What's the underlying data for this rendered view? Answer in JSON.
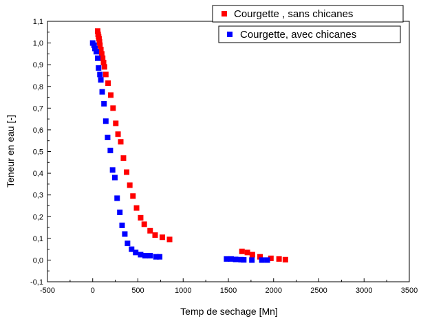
{
  "chart_data": {
    "type": "scatter",
    "xlabel": "Temp de sechage [Mn]",
    "ylabel": "Teneur en eau [-]",
    "xlim": [
      -500,
      3500
    ],
    "ylim": [
      -0.1,
      1.1
    ],
    "x_ticks": [
      -500,
      0,
      500,
      1000,
      1500,
      2000,
      2500,
      3000,
      3500
    ],
    "y_ticks": [
      -0.1,
      0.0,
      0.1,
      0.2,
      0.3,
      0.4,
      0.5,
      0.6,
      0.7,
      0.8,
      0.9,
      1.0,
      1.1
    ],
    "x_tick_labels": [
      "-500",
      "0",
      "500",
      "1000",
      "1500",
      "2000",
      "2500",
      "3000",
      "3500"
    ],
    "y_tick_labels": [
      "-0,1",
      "0,0",
      "0,1",
      "0,2",
      "0,3",
      "0,4",
      "0,5",
      "0,6",
      "0,7",
      "0,8",
      "0,9",
      "1,0",
      "1,1"
    ],
    "grid": false,
    "legend_position": "top-right",
    "series": [
      {
        "name": "Courgette , sans chicanes",
        "color": "#ff0000",
        "marker": "square",
        "points": [
          [
            55,
            1.055
          ],
          [
            60,
            1.04
          ],
          [
            65,
            1.03
          ],
          [
            70,
            1.02
          ],
          [
            75,
            1.005
          ],
          [
            80,
            0.99
          ],
          [
            90,
            0.97
          ],
          [
            100,
            0.95
          ],
          [
            110,
            0.93
          ],
          [
            120,
            0.91
          ],
          [
            130,
            0.89
          ],
          [
            145,
            0.855
          ],
          [
            170,
            0.815
          ],
          [
            200,
            0.76
          ],
          [
            225,
            0.7
          ],
          [
            255,
            0.63
          ],
          [
            280,
            0.58
          ],
          [
            310,
            0.545
          ],
          [
            340,
            0.47
          ],
          [
            375,
            0.405
          ],
          [
            410,
            0.345
          ],
          [
            445,
            0.295
          ],
          [
            485,
            0.24
          ],
          [
            530,
            0.195
          ],
          [
            570,
            0.165
          ],
          [
            635,
            0.135
          ],
          [
            690,
            0.115
          ],
          [
            770,
            0.105
          ],
          [
            850,
            0.095
          ],
          [
            1650,
            0.04
          ],
          [
            1710,
            0.035
          ],
          [
            1765,
            0.025
          ],
          [
            1850,
            0.015
          ],
          [
            1970,
            0.008
          ],
          [
            2060,
            0.005
          ],
          [
            2130,
            0.002
          ]
        ]
      },
      {
        "name": "Courgette, avec chicanes",
        "color": "#0000ff",
        "marker": "square",
        "points": [
          [
            0,
            1.0
          ],
          [
            15,
            0.99
          ],
          [
            25,
            0.975
          ],
          [
            40,
            0.96
          ],
          [
            55,
            0.93
          ],
          [
            65,
            0.885
          ],
          [
            80,
            0.855
          ],
          [
            90,
            0.83
          ],
          [
            105,
            0.775
          ],
          [
            125,
            0.72
          ],
          [
            145,
            0.64
          ],
          [
            165,
            0.565
          ],
          [
            195,
            0.505
          ],
          [
            220,
            0.415
          ],
          [
            245,
            0.38
          ],
          [
            270,
            0.285
          ],
          [
            300,
            0.22
          ],
          [
            325,
            0.16
          ],
          [
            355,
            0.12
          ],
          [
            385,
            0.077
          ],
          [
            430,
            0.05
          ],
          [
            475,
            0.035
          ],
          [
            530,
            0.025
          ],
          [
            580,
            0.02
          ],
          [
            635,
            0.02
          ],
          [
            700,
            0.015
          ],
          [
            740,
            0.015
          ],
          [
            1480,
            0.005
          ],
          [
            1530,
            0.005
          ],
          [
            1580,
            0.003
          ],
          [
            1640,
            0.002
          ],
          [
            1670,
            0.001
          ],
          [
            1760,
            0.0
          ],
          [
            1870,
            0.0
          ],
          [
            1930,
            0.0
          ]
        ]
      }
    ]
  }
}
